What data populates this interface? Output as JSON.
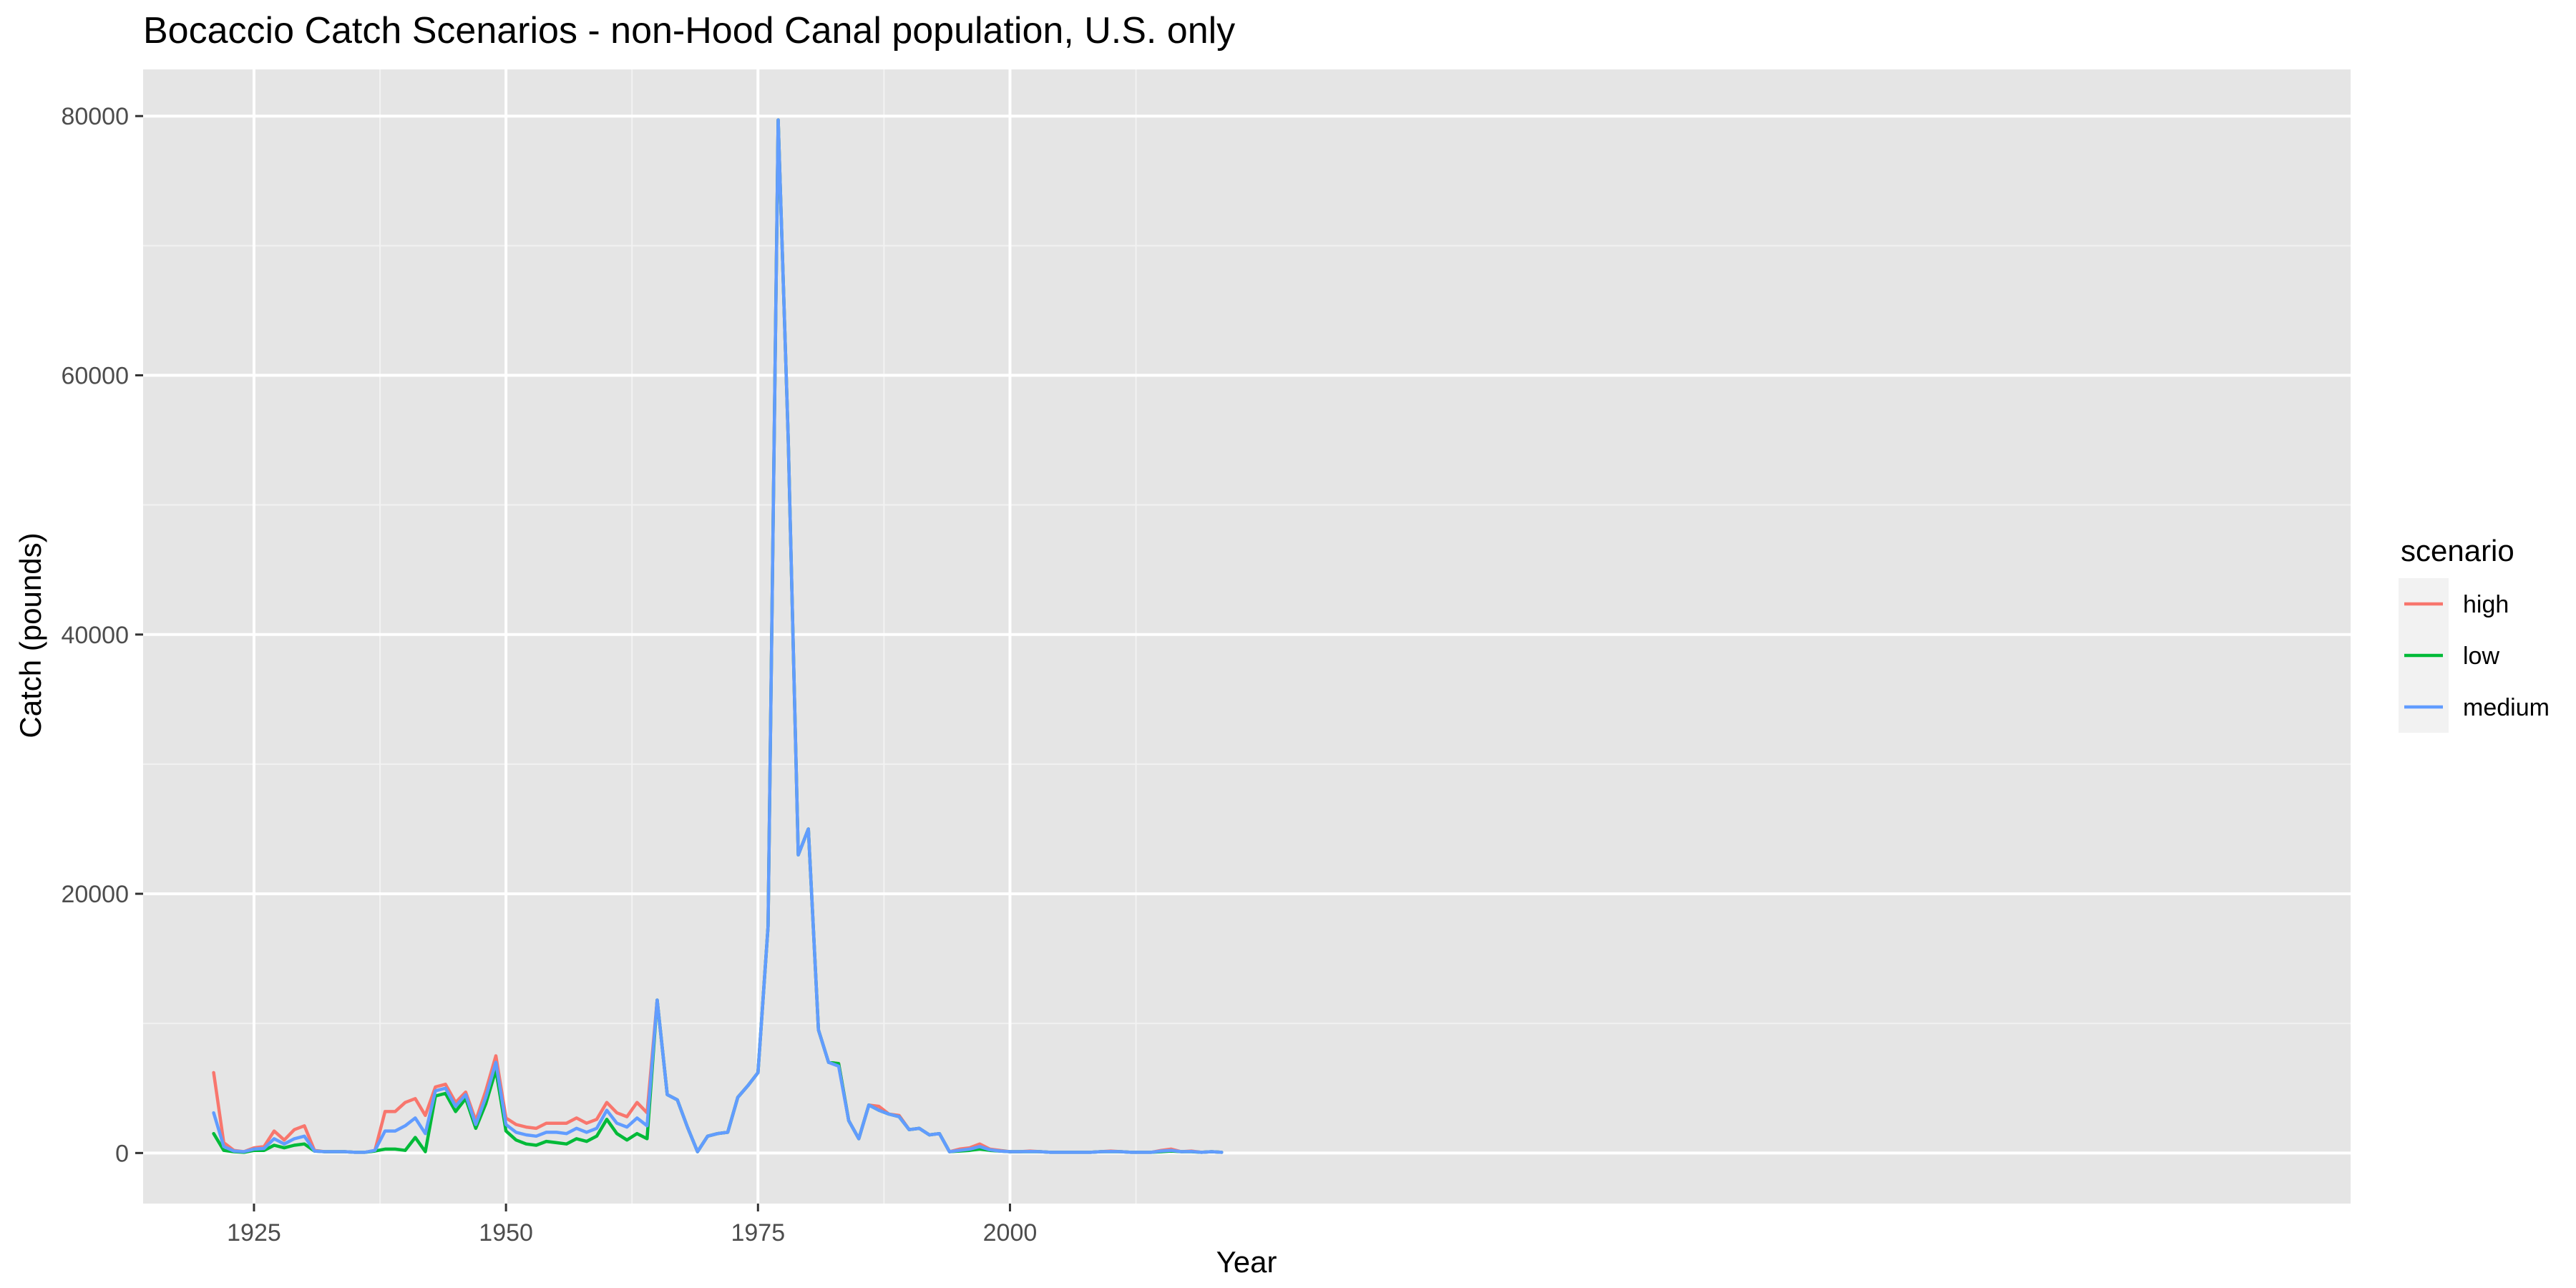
{
  "chart_data": {
    "type": "line",
    "title": "Bocaccio Catch Scenarios - non-Hood Canal population, U.S. only",
    "xlabel": "Year",
    "ylabel": "Catch (pounds)",
    "xlim": [
      1914,
      2133
    ],
    "ylim": [
      -3900,
      83600
    ],
    "x_ticks": [
      1925,
      1950,
      1975,
      2000
    ],
    "x_tick_labels": [
      "1925",
      "1950",
      "1975",
      "2000"
    ],
    "y_ticks": [
      0,
      20000,
      40000,
      60000,
      80000
    ],
    "y_tick_labels": [
      "0",
      "20000",
      "40000",
      "60000",
      "80000"
    ],
    "grid": true,
    "legend_title": "scenario",
    "legend_position": "right",
    "x": [
      1921,
      1922,
      1923,
      1924,
      1925,
      1926,
      1927,
      1928,
      1929,
      1930,
      1931,
      1932,
      1933,
      1934,
      1935,
      1936,
      1937,
      1938,
      1939,
      1940,
      1941,
      1942,
      1943,
      1944,
      1945,
      1946,
      1947,
      1948,
      1949,
      1950,
      1951,
      1952,
      1953,
      1954,
      1955,
      1956,
      1957,
      1958,
      1959,
      1960,
      1961,
      1962,
      1963,
      1964,
      1965,
      1966,
      1967,
      1968,
      1969,
      1970,
      1971,
      1972,
      1973,
      1974,
      1975,
      1976,
      1977,
      1978,
      1979,
      1980,
      1981,
      1982,
      1983,
      1984,
      1985,
      1986,
      1987,
      1988,
      1989,
      1990,
      1991,
      1992,
      1993,
      1994,
      1995,
      1996,
      1997,
      1998,
      1999,
      2000,
      2001,
      2002,
      2003,
      2004,
      2005,
      2006,
      2007,
      2008,
      2009,
      2010,
      2011,
      2012,
      2013,
      2014,
      2015,
      2016,
      2017,
      2018,
      2019,
      2020,
      2021
    ],
    "series": [
      {
        "name": "high",
        "color": "#F8766D",
        "values": [
          6200,
          800,
          200,
          100,
          400,
          500,
          1700,
          1000,
          1800,
          2100,
          200,
          100,
          100,
          100,
          50,
          50,
          200,
          3200,
          3200,
          3900,
          4200,
          2900,
          5100,
          5300,
          3900,
          4700,
          2500,
          4800,
          7500,
          2700,
          2200,
          2000,
          1900,
          2300,
          2300,
          2300,
          2700,
          2300,
          2600,
          3900,
          3100,
          2800,
          3900,
          3100,
          11800,
          4500,
          4100,
          2000,
          100,
          1300,
          1500,
          1600,
          4300,
          5200,
          6200,
          17500,
          79700,
          55000,
          23000,
          25000,
          9500,
          7000,
          6900,
          2500,
          1100,
          3700,
          3600,
          3000,
          2900,
          1800,
          1900,
          1400,
          1500,
          100,
          300,
          400,
          700,
          300,
          200,
          100,
          100,
          150,
          100,
          50,
          50,
          50,
          50,
          50,
          100,
          150,
          100,
          50,
          50,
          50,
          200,
          300,
          100,
          150,
          50,
          100,
          50
        ]
      },
      {
        "name": "low",
        "color": "#00BA38",
        "values": [
          1500,
          200,
          100,
          50,
          200,
          200,
          600,
          400,
          600,
          700,
          150,
          100,
          100,
          100,
          50,
          50,
          150,
          300,
          300,
          200,
          1200,
          100,
          4400,
          4600,
          3200,
          4200,
          1900,
          3800,
          6400,
          1700,
          1000,
          700,
          600,
          900,
          800,
          700,
          1100,
          900,
          1300,
          2600,
          1500,
          1000,
          1500,
          1100,
          11800,
          4500,
          4100,
          2000,
          100,
          1300,
          1500,
          1600,
          4300,
          5200,
          6200,
          17500,
          79700,
          55000,
          23000,
          25000,
          9500,
          7000,
          6900,
          2500,
          1100,
          3700,
          3300,
          3000,
          2800,
          1800,
          1900,
          1400,
          1500,
          100,
          150,
          200,
          300,
          200,
          150,
          100,
          100,
          100,
          100,
          50,
          50,
          50,
          50,
          50,
          100,
          100,
          100,
          50,
          50,
          50,
          100,
          150,
          100,
          100,
          50,
          100,
          50
        ]
      },
      {
        "name": "medium",
        "color": "#619CFF",
        "values": [
          3100,
          500,
          150,
          100,
          300,
          350,
          1100,
          700,
          1100,
          1300,
          150,
          100,
          100,
          100,
          50,
          50,
          200,
          1700,
          1700,
          2100,
          2700,
          1500,
          4800,
          5000,
          3600,
          4500,
          2200,
          4300,
          7000,
          2200,
          1600,
          1400,
          1300,
          1600,
          1600,
          1500,
          1900,
          1600,
          1900,
          3300,
          2300,
          2000,
          2700,
          2100,
          11800,
          4500,
          4100,
          2000,
          100,
          1300,
          1500,
          1600,
          4300,
          5200,
          6200,
          17500,
          79700,
          55000,
          23000,
          25000,
          9500,
          7000,
          6700,
          2500,
          1100,
          3700,
          3300,
          3000,
          2800,
          1800,
          1900,
          1400,
          1500,
          100,
          200,
          300,
          500,
          250,
          150,
          100,
          100,
          120,
          100,
          50,
          50,
          50,
          50,
          50,
          100,
          120,
          100,
          50,
          50,
          50,
          150,
          200,
          100,
          120,
          50,
          100,
          50
        ]
      }
    ]
  }
}
